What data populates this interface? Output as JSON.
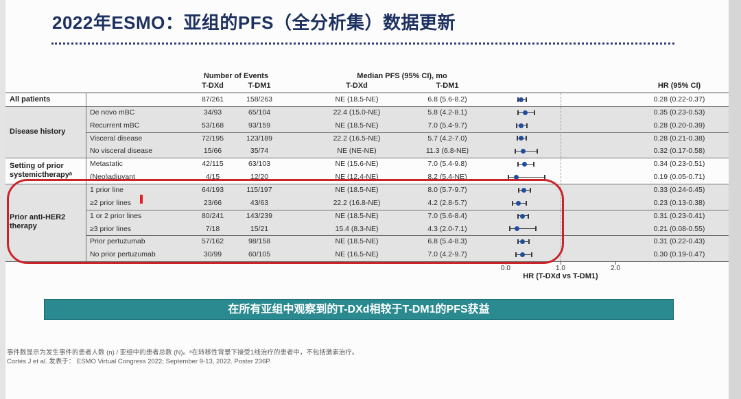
{
  "page": {
    "title": "2022年ESMO：亚组的PFS（全分析集）数据更新",
    "banner_text": "在所有亚组中观察到的T-DXd相较于T-DM1的PFS获益",
    "footnotes": [
      "事件数显示为发生事件的患者人数 (n) / 亚组中的患者总数 (N)。ᵃ在转移性背景下接受1线治疗的患者中，不包括激素治疗。",
      "Cortés J et al. 发表于： ESMO Virtual Congress 2022; September 9-13, 2022. Poster 236P."
    ]
  },
  "table": {
    "column_headers": {
      "events_group": "Number of Events",
      "median_group": "Median PFS (95% CI), mo",
      "tdxd_events": "T-DXd",
      "tdm1_events": "T-DM1",
      "tdxd_median": "T-DXd",
      "tdm1_median": "T-DM1",
      "hr": "HR (95% CI)"
    },
    "sections": [
      {
        "label": "All patients",
        "shaded": false,
        "divider_after": [],
        "rows": [
          {
            "subgroup": "",
            "events_tdxd": "87/261",
            "events_tdm1": "158/263",
            "pfs_tdxd": "NE (18.5-NE)",
            "pfs_tdm1": "6.8 (5.6-8.2)",
            "hr_text": "0.28 (0.22-0.37)"
          }
        ]
      },
      {
        "label": "Disease history",
        "shaded": true,
        "divider_after": [
          1
        ],
        "rows": [
          {
            "subgroup": "De novo mBC",
            "events_tdxd": "34/93",
            "events_tdm1": "65/104",
            "pfs_tdxd": "22.4 (15.0-NE)",
            "pfs_tdm1": "5.8 (4.2-8.1)",
            "hr_text": "0.35 (0.23-0.53)"
          },
          {
            "subgroup": "Recurrent mBC",
            "events_tdxd": "53/168",
            "events_tdm1": "93/159",
            "pfs_tdxd": "NE (18.5-NE)",
            "pfs_tdm1": "7.0 (5.4-9.7)",
            "hr_text": "0.28 (0.20-0.39)"
          },
          {
            "subgroup": "Visceral disease",
            "events_tdxd": "72/195",
            "events_tdm1": "123/189",
            "pfs_tdxd": "22.2 (16.5-NE)",
            "pfs_tdm1": "5.7 (4.2-7.0)",
            "hr_text": "0.28 (0.21-0.38)"
          },
          {
            "subgroup": "No visceral disease",
            "events_tdxd": "15/66",
            "events_tdm1": "35/74",
            "pfs_tdxd": "NE (NE-NE)",
            "pfs_tdm1": "11.3 (6.8-NE)",
            "hr_text": "0.32 (0.17-0.58)"
          }
        ]
      },
      {
        "label": "Setting of prior systemictherapyᵃ",
        "shaded": false,
        "divider_after": [],
        "rows": [
          {
            "subgroup": "Metastatic",
            "events_tdxd": "42/115",
            "events_tdm1": "63/103",
            "pfs_tdxd": "NE (15.6-NE)",
            "pfs_tdm1": "7.0 (5.4-9.8)",
            "hr_text": "0.34 (0.23-0.51)"
          },
          {
            "subgroup": "(Neo)adjuvant",
            "events_tdxd": "4/15",
            "events_tdm1": "12/20",
            "pfs_tdxd": "NE (12.4-NE)",
            "pfs_tdm1": "8.2 (5.4-NE)",
            "hr_text": "0.19 (0.05-0.71)"
          }
        ]
      },
      {
        "label": "Prior anti-HER2 therapy",
        "shaded": true,
        "divider_after": [
          1,
          3
        ],
        "rows": [
          {
            "subgroup": "1 prior line",
            "events_tdxd": "64/193",
            "events_tdm1": "115/197",
            "pfs_tdxd": "NE (18.5-NE)",
            "pfs_tdm1": "8.0 (5.7-9.7)",
            "hr_text": "0.33 (0.24-0.45)"
          },
          {
            "subgroup": "≥2 prior lines",
            "events_tdxd": "23/66",
            "events_tdm1": "43/63",
            "pfs_tdxd": "22.2 (16.8-NE)",
            "pfs_tdm1": "4.2 (2.8-5.7)",
            "hr_text": "0.23 (0.13-0.38)"
          },
          {
            "subgroup": "1 or 2 prior lines",
            "events_tdxd": "80/241",
            "events_tdm1": "143/239",
            "pfs_tdxd": "NE (18.5-NE)",
            "pfs_tdm1": "7.0 (5.6-8.4)",
            "hr_text": "0.31 (0.23-0.41)"
          },
          {
            "subgroup": "≥3 prior lines",
            "events_tdxd": "7/18",
            "events_tdm1": "15/21",
            "pfs_tdxd": "15.4 (8.3-NE)",
            "pfs_tdm1": "4.3 (2.0-7.1)",
            "hr_text": "0.21 (0.08-0.55)"
          },
          {
            "subgroup": "Prior pertuzumab",
            "events_tdxd": "57/162",
            "events_tdm1": "98/158",
            "pfs_tdxd": "NE (18.5-NE)",
            "pfs_tdm1": "6.8 (5.4-8.3)",
            "hr_text": "0.31 (0.22-0.43)"
          },
          {
            "subgroup": "No prior pertuzumab",
            "events_tdxd": "30/99",
            "events_tdm1": "60/105",
            "pfs_tdxd": "NE (16.5-NE)",
            "pfs_tdm1": "7.0 (4.2-9.7)",
            "hr_text": "0.30 (0.19-0.47)"
          }
        ]
      }
    ]
  },
  "chart_data": {
    "type": "scatter",
    "variant": "forest-plot",
    "title": "PFS hazard ratios by subgroup (T-DXd vs T-DM1)",
    "xlabel": "HR (T-DXd vs T-DM1)",
    "xlim": [
      0,
      2.2
    ],
    "reference_line": 1.0,
    "grid": false,
    "marker_color": "#1e4f9e",
    "x_ticks": [
      {
        "value": 0,
        "label": "0.0"
      },
      {
        "value": 1,
        "label": "1.0"
      },
      {
        "value": 2,
        "label": "2.0"
      }
    ],
    "points": [
      {
        "label": "All patients",
        "hr": 0.28,
        "ci": [
          0.22,
          0.37
        ]
      },
      {
        "label": "De novo mBC",
        "hr": 0.35,
        "ci": [
          0.23,
          0.53
        ]
      },
      {
        "label": "Recurrent mBC",
        "hr": 0.28,
        "ci": [
          0.2,
          0.39
        ]
      },
      {
        "label": "Visceral disease",
        "hr": 0.28,
        "ci": [
          0.21,
          0.38
        ]
      },
      {
        "label": "No visceral disease",
        "hr": 0.32,
        "ci": [
          0.17,
          0.58
        ]
      },
      {
        "label": "Metastatic",
        "hr": 0.34,
        "ci": [
          0.23,
          0.51
        ]
      },
      {
        "label": "(Neo)adjuvant",
        "hr": 0.19,
        "ci": [
          0.05,
          0.71
        ]
      },
      {
        "label": "1 prior line",
        "hr": 0.33,
        "ci": [
          0.24,
          0.45
        ]
      },
      {
        "label": "≥2 prior lines",
        "hr": 0.23,
        "ci": [
          0.13,
          0.38
        ]
      },
      {
        "label": "1 or 2 prior lines",
        "hr": 0.31,
        "ci": [
          0.23,
          0.41
        ]
      },
      {
        "label": "≥3 prior lines",
        "hr": 0.21,
        "ci": [
          0.08,
          0.55
        ]
      },
      {
        "label": "Prior pertuzumab",
        "hr": 0.31,
        "ci": [
          0.22,
          0.43
        ]
      },
      {
        "label": "No prior pertuzumab",
        "hr": 0.3,
        "ci": [
          0.19,
          0.47
        ]
      }
    ]
  }
}
